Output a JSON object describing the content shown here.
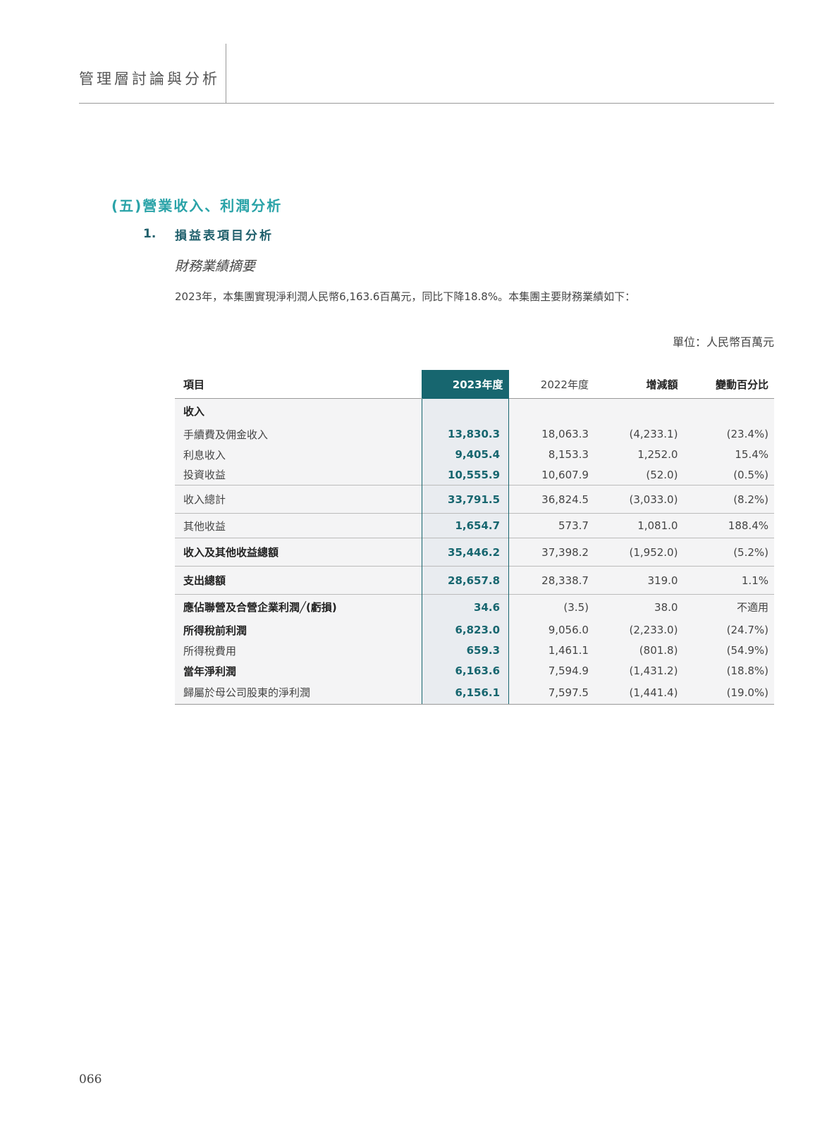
{
  "header": {
    "title": "管理層討論與分析"
  },
  "section": {
    "title": "(五)營業收入、利潤分析",
    "sub_number": "1.",
    "sub_title": "損益表項目分析",
    "italic_heading": "財務業績摘要",
    "paragraph": "2023年，本集團實現淨利潤人民幣6,163.6百萬元，同比下降18.8%。本集團主要財務業績如下：",
    "unit": "單位：人民幣百萬元"
  },
  "table": {
    "headers": [
      "項目",
      "2023年度",
      "2022年度",
      "增減額",
      "變動百分比"
    ],
    "rows": [
      {
        "label": "收入",
        "cur": "",
        "prev": "",
        "chg": "",
        "pct": ""
      },
      {
        "label": "手續費及佣金收入",
        "cur": "13,830.3",
        "prev": "18,063.3",
        "chg": "(4,233.1)",
        "pct": "(23.4%)"
      },
      {
        "label": "利息收入",
        "cur": "9,405.4",
        "prev": "8,153.3",
        "chg": "1,252.0",
        "pct": "15.4%"
      },
      {
        "label": "投資收益",
        "cur": "10,555.9",
        "prev": "10,607.9",
        "chg": "(52.0)",
        "pct": "(0.5%)"
      },
      {
        "label": "收入總計",
        "cur": "33,791.5",
        "prev": "36,824.5",
        "chg": "(3,033.0)",
        "pct": "(8.2%)"
      },
      {
        "label": "其他收益",
        "cur": "1,654.7",
        "prev": "573.7",
        "chg": "1,081.0",
        "pct": "188.4%"
      },
      {
        "label": "收入及其他收益總額",
        "cur": "35,446.2",
        "prev": "37,398.2",
        "chg": "(1,952.0)",
        "pct": "(5.2%)"
      },
      {
        "label": "支出總額",
        "cur": "28,657.8",
        "prev": "28,338.7",
        "chg": "319.0",
        "pct": "1.1%"
      },
      {
        "label": "應佔聯營及合營企業利潤╱(虧損)",
        "cur": "34.6",
        "prev": "(3.5)",
        "chg": "38.0",
        "pct": "不適用"
      },
      {
        "label": "所得稅前利潤",
        "cur": "6,823.0",
        "prev": "9,056.0",
        "chg": "(2,233.0)",
        "pct": "(24.7%)"
      },
      {
        "label": "所得稅費用",
        "cur": "659.3",
        "prev": "1,461.1",
        "chg": "(801.8)",
        "pct": "(54.9%)"
      },
      {
        "label": "當年淨利潤",
        "cur": "6,163.6",
        "prev": "7,594.9",
        "chg": "(1,431.2)",
        "pct": "(18.8%)"
      },
      {
        "label": "歸屬於母公司股東的淨利潤",
        "cur": "6,156.1",
        "prev": "7,597.5",
        "chg": "(1,441.4)",
        "pct": "(19.0%)"
      }
    ]
  },
  "footer": {
    "page_number": "066"
  },
  "colors": {
    "accent": "#17666f",
    "section_title": "#2aa3a8"
  }
}
